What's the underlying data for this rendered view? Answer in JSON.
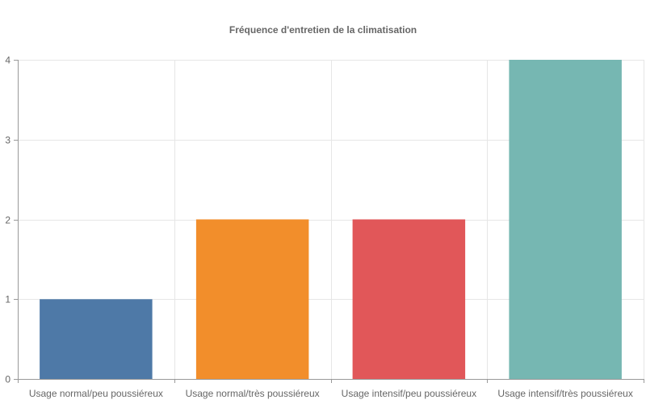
{
  "chart_data": {
    "type": "bar",
    "title": "Fréquence d'entretien de la climatisation",
    "categories": [
      "Usage normal/peu poussiéreux",
      "Usage normal/très poussiéreux",
      "Usage intensif/peu poussiéreux",
      "Usage intensif/très poussiéreux"
    ],
    "values": [
      1,
      2,
      2,
      4
    ],
    "colors": [
      "#4e79a7",
      "#f28e2b",
      "#e15759",
      "#76b7b2"
    ],
    "xlabel": "",
    "ylabel": "",
    "ylim": [
      0,
      4
    ],
    "yticks": [
      "0",
      "1",
      "2",
      "3",
      "4"
    ],
    "grid": true,
    "legend": "none"
  }
}
